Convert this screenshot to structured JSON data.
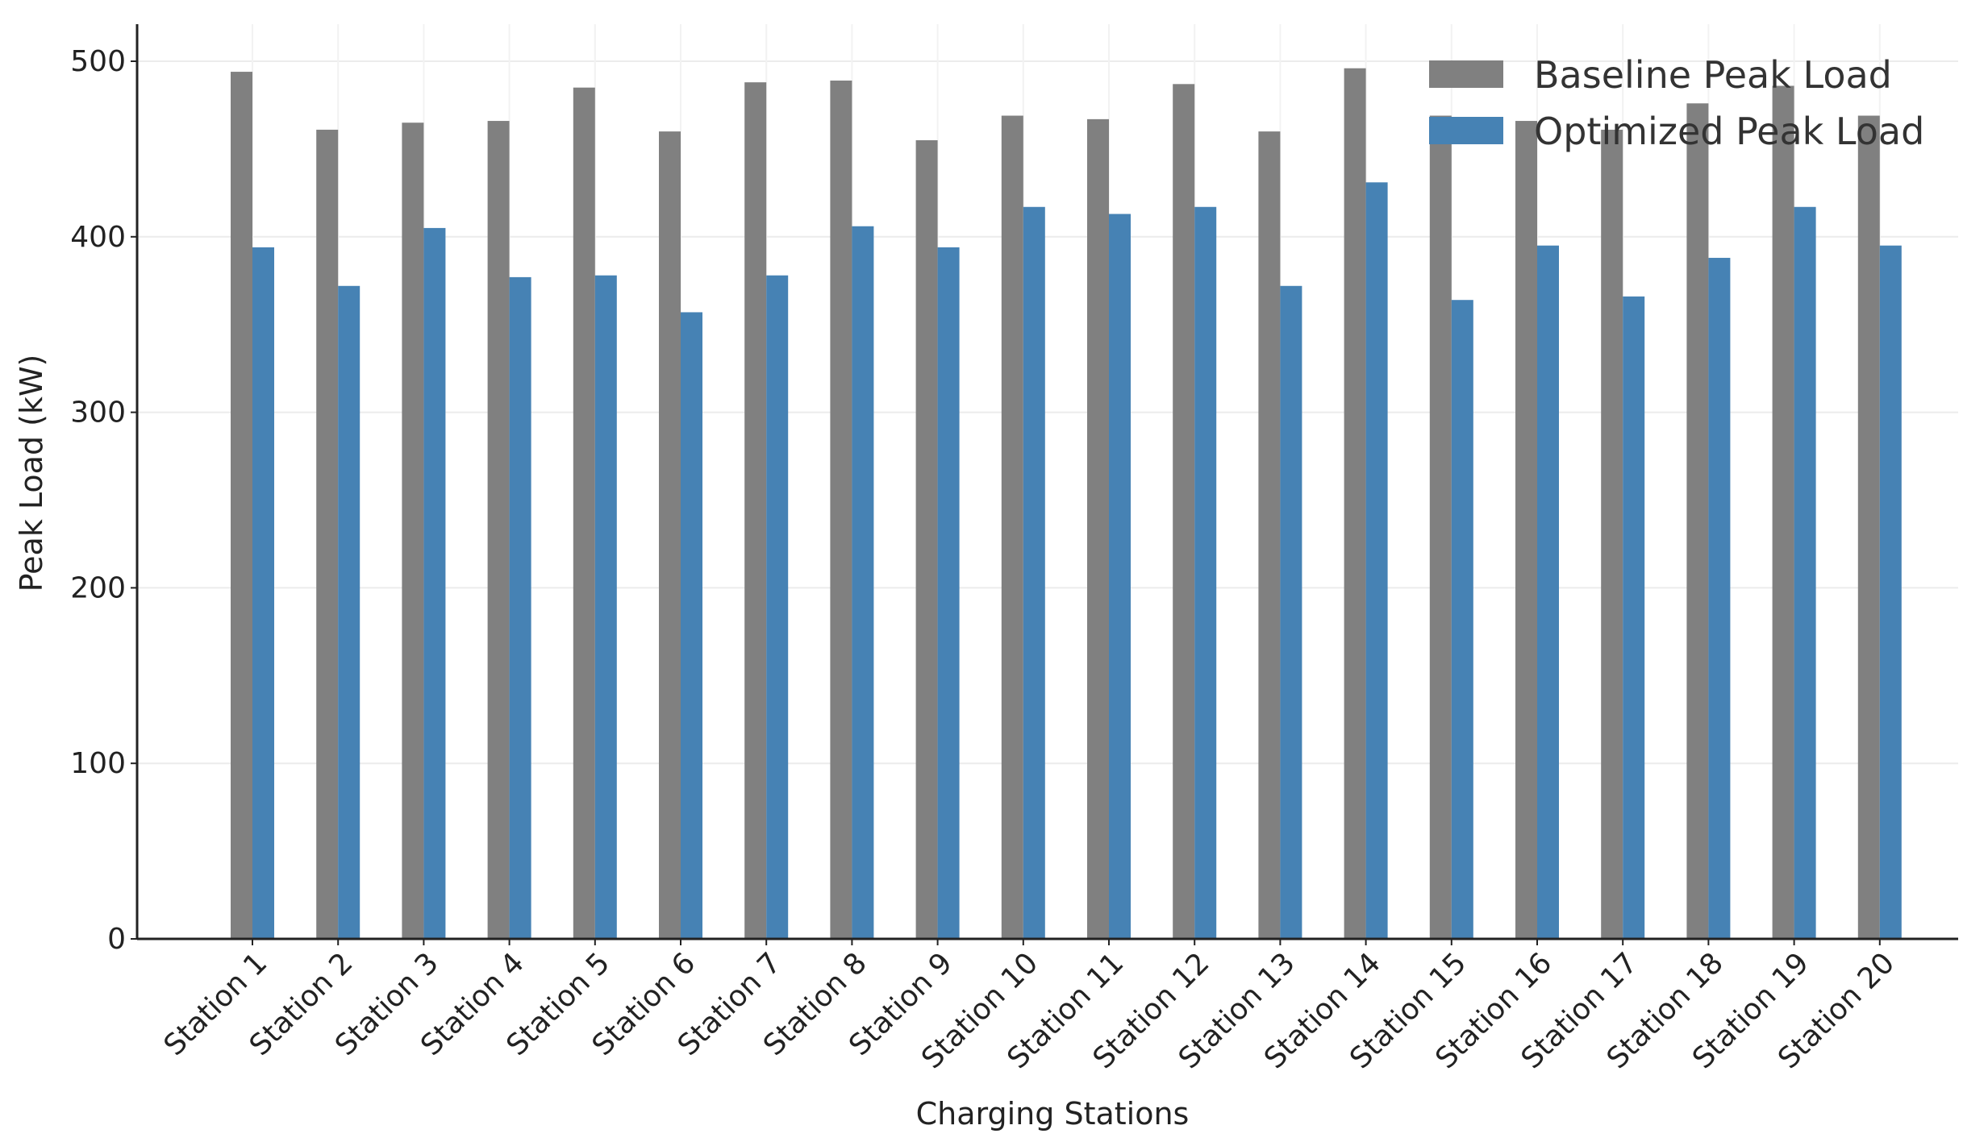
{
  "chart_data": {
    "type": "bar",
    "title": "",
    "xlabel": "Charging Stations",
    "ylabel": "Peak Load (kW)",
    "ylim": [
      0,
      520
    ],
    "yticks": [
      0,
      100,
      200,
      300,
      400,
      500
    ],
    "grid": true,
    "legend_position": "top-right",
    "categories": [
      "Station 1",
      "Station 2",
      "Station 3",
      "Station 4",
      "Station 5",
      "Station 6",
      "Station 7",
      "Station 8",
      "Station 9",
      "Station 10",
      "Station 11",
      "Station 12",
      "Station 13",
      "Station 14",
      "Station 15",
      "Station 16",
      "Station 17",
      "Station 18",
      "Station 19",
      "Station 20"
    ],
    "series": [
      {
        "name": "Baseline Peak Load",
        "color": "#808080",
        "values": [
          494,
          461,
          465,
          466,
          485,
          460,
          488,
          489,
          455,
          469,
          467,
          487,
          460,
          496,
          469,
          466,
          461,
          476,
          486,
          469
        ]
      },
      {
        "name": "Optimized Peak Load",
        "color": "#4682b4",
        "values": [
          394,
          372,
          405,
          377,
          378,
          357,
          378,
          406,
          394,
          417,
          413,
          417,
          372,
          431,
          364,
          395,
          366,
          388,
          417,
          395
        ]
      }
    ]
  }
}
